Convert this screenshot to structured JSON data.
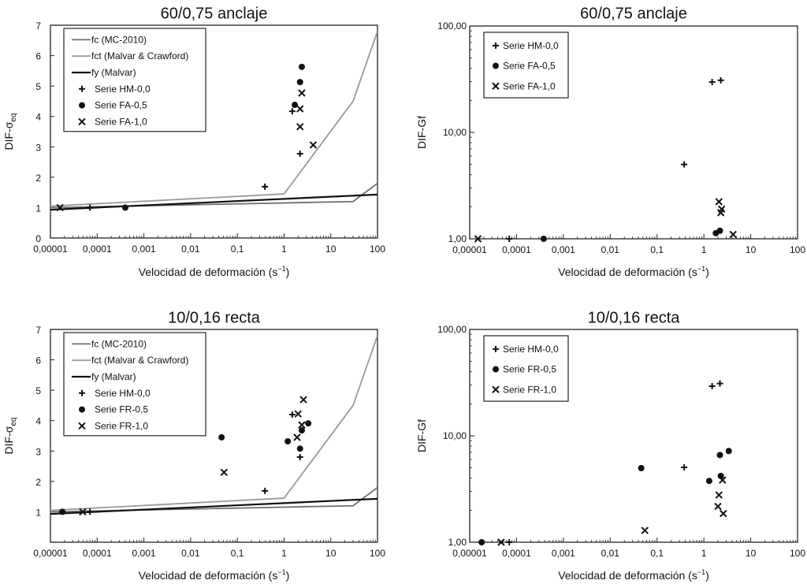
{
  "colors": {
    "fc": "#707070",
    "fct": "#9a9a9a",
    "fy": "#111111",
    "marker": "#111111"
  },
  "chart_data": [
    {
      "type": "scatter",
      "title": "60/0,75 anclaje",
      "xlabel": "Velocidad de deformación (s",
      "xlabel_sup": "−1",
      "xlabel_end": ")",
      "ylabel": "DIF-σ",
      "ylabel_sub": "eq",
      "xscale": "log",
      "yscale": "linear",
      "xlim": [
        1e-05,
        100
      ],
      "ylim": [
        0,
        7
      ],
      "xticks": [
        "0,00001",
        "0,0001",
        "0,001",
        "0,01",
        "0,1",
        "1",
        "10",
        "100"
      ],
      "yticks": [
        "0",
        "1",
        "2",
        "3",
        "4",
        "5",
        "6",
        "7"
      ],
      "legend_position": "top-left",
      "lines": [
        {
          "name": "fc (MC-2010)",
          "color_key": "fc",
          "x": [
            1e-05,
            30,
            100
          ],
          "y": [
            1.0,
            1.2,
            1.8
          ]
        },
        {
          "name": "fct (Malvar & Crawford)",
          "color_key": "fct",
          "x": [
            1e-05,
            1,
            30,
            100
          ],
          "y": [
            1.05,
            1.45,
            4.5,
            6.8
          ]
        },
        {
          "name": "fy (Malvar)",
          "color_key": "fy",
          "x": [
            1e-05,
            100
          ],
          "y": [
            0.93,
            1.43
          ]
        }
      ],
      "series": [
        {
          "name": "Serie HM-0,0",
          "marker": "plus",
          "x": [
            7e-05,
            0.39,
            1.5,
            2.2
          ],
          "y": [
            1.0,
            1.69,
            4.17,
            2.77
          ]
        },
        {
          "name": "Serie FA-0,5",
          "marker": "dot",
          "x": [
            0.0004,
            1.7,
            2.2,
            2.4
          ],
          "y": [
            1.0,
            4.38,
            5.13,
            5.63
          ]
        },
        {
          "name": "Serie FA-1,0",
          "marker": "cross",
          "x": [
            1.6e-05,
            2.2,
            2.4,
            2.2,
            4.2
          ],
          "y": [
            1.0,
            4.25,
            4.77,
            3.66,
            3.06
          ]
        }
      ]
    },
    {
      "type": "scatter",
      "title": "60/0,75 anclaje",
      "xlabel": "Velocidad de deformación (s",
      "xlabel_sup": "−1",
      "xlabel_end": ")",
      "ylabel": "DIF-Gf",
      "xscale": "log",
      "yscale": "log",
      "xlim": [
        1e-05,
        100
      ],
      "ylim": [
        1,
        100
      ],
      "xticks": [
        "0,00001",
        "0,0001",
        "0,001",
        "0,01",
        "0,1",
        "1",
        "10",
        "100"
      ],
      "yticks": [
        "1,00",
        "10,00",
        "100,00"
      ],
      "legend_position": "top-left",
      "lines": [],
      "series": [
        {
          "name": "Serie HM-0,0",
          "marker": "plus",
          "x": [
            7e-05,
            0.38,
            1.5,
            2.3
          ],
          "y": [
            1.0,
            5.0,
            29.7,
            30.9
          ]
        },
        {
          "name": "Serie FA-0,5",
          "marker": "dot",
          "x": [
            0.00038,
            1.8,
            2.2
          ],
          "y": [
            1.0,
            1.13,
            1.19
          ]
        },
        {
          "name": "Serie FA-1,0",
          "marker": "cross",
          "x": [
            1.5e-05,
            2.1,
            2.3,
            2.4,
            4.2
          ],
          "y": [
            1.0,
            2.23,
            1.76,
            1.9,
            1.1
          ]
        }
      ]
    },
    {
      "type": "scatter",
      "title": "10/0,16 recta",
      "xlabel": "Velocidad de deformación (s",
      "xlabel_sup": "−1",
      "xlabel_end": ")",
      "ylabel": "DIF-σ",
      "ylabel_sub": "eq",
      "xscale": "log",
      "yscale": "linear",
      "xlim": [
        1e-05,
        100
      ],
      "ylim": [
        0,
        7
      ],
      "xticks": [
        "0,00001",
        "0,0001",
        "0,001",
        "0,01",
        "0,1",
        "1",
        "10",
        "100"
      ],
      "yticks": [
        "",
        "1",
        "2",
        "3",
        "4",
        "5",
        "6",
        "7"
      ],
      "legend_position": "top-left",
      "lines": [
        {
          "name": "fc (MC-2010)",
          "color_key": "fc",
          "x": [
            1e-05,
            30,
            100
          ],
          "y": [
            1.0,
            1.2,
            1.8
          ]
        },
        {
          "name": "fct (Malvar & Crawford)",
          "color_key": "fct",
          "x": [
            1e-05,
            1,
            30,
            100
          ],
          "y": [
            1.05,
            1.45,
            4.5,
            6.8
          ]
        },
        {
          "name": "fy (Malvar)",
          "color_key": "fy",
          "x": [
            1e-05,
            100
          ],
          "y": [
            0.93,
            1.43
          ]
        }
      ],
      "series": [
        {
          "name": "Serie HM-0,0",
          "marker": "plus",
          "x": [
            7e-05,
            0.39,
            1.5,
            2.2
          ],
          "y": [
            1.0,
            1.69,
            4.2,
            2.8
          ]
        },
        {
          "name": "Serie FR-0,5",
          "marker": "dot",
          "x": [
            1.8e-05,
            0.046,
            1.2,
            2.2,
            2.4,
            3.3
          ],
          "y": [
            1.0,
            3.45,
            3.32,
            3.08,
            3.68,
            3.91
          ]
        },
        {
          "name": "Serie FR-1,0",
          "marker": "cross",
          "x": [
            4.9e-05,
            0.052,
            1.9,
            2.0,
            2.6,
            2.4
          ],
          "y": [
            1.0,
            2.3,
            3.45,
            4.22,
            4.69,
            3.86
          ]
        }
      ]
    },
    {
      "type": "scatter",
      "title": "10/0,16 recta",
      "xlabel": "Velocidad de deformación (s",
      "xlabel_sup": "−1",
      "xlabel_end": ")",
      "ylabel": "DIF-Gf",
      "xscale": "log",
      "yscale": "log",
      "xlim": [
        1e-05,
        100
      ],
      "ylim": [
        1,
        100
      ],
      "xticks": [
        "0,00001",
        "0,0001",
        "0,001",
        "0,01",
        "0,1",
        "1",
        "10",
        "100"
      ],
      "yticks": [
        "1,00",
        "10,00",
        "100,00"
      ],
      "legend_position": "top-left",
      "lines": [],
      "series": [
        {
          "name": "Serie HM-0,0",
          "marker": "plus",
          "x": [
            7e-05,
            0.38,
            1.5,
            2.2
          ],
          "y": [
            1.0,
            5.05,
            29.3,
            31.0
          ]
        },
        {
          "name": "Serie FR-0,5",
          "marker": "dot",
          "x": [
            1.8e-05,
            0.046,
            1.3,
            2.2,
            2.3,
            3.4
          ],
          "y": [
            1.0,
            4.97,
            3.77,
            6.6,
            4.2,
            7.2
          ]
        },
        {
          "name": "Serie FR-1,0",
          "marker": "cross",
          "x": [
            4.7e-05,
            0.055,
            2.1,
            2.0,
            2.6,
            2.5
          ],
          "y": [
            1.0,
            1.29,
            2.78,
            2.17,
            1.86,
            3.84
          ]
        }
      ]
    }
  ]
}
